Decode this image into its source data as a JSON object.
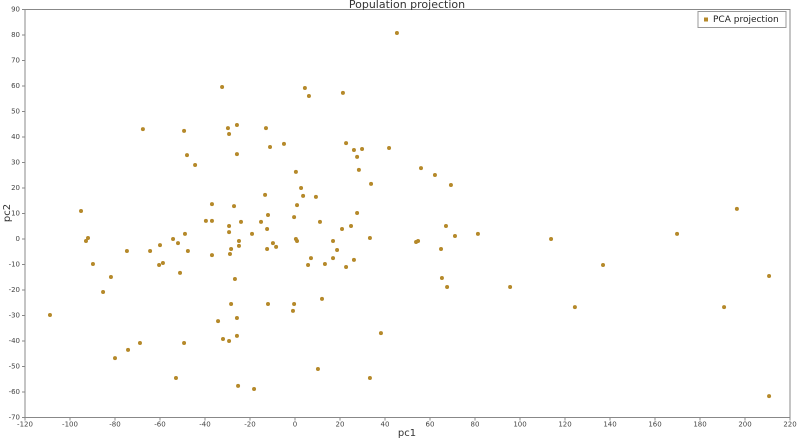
{
  "chart_data": {
    "type": "scatter",
    "title": "Population projection",
    "xlabel": "pc1",
    "ylabel": "pc2",
    "series": [
      {
        "name": "PCA projection",
        "color": "#b5892a",
        "x": [
          -108.9,
          -95.1,
          -92.9,
          -92.0,
          -89.8,
          -85.3,
          -81.8,
          -80.0,
          -74.7,
          -74.2,
          -68.9,
          -67.6,
          -64.4,
          -60.0,
          -60.4,
          -58.7,
          -54.2,
          -52.9,
          -52.0,
          -51.1,
          -49.3,
          -48.9,
          -49.3,
          -48.0,
          -47.6,
          -44.4,
          -39.6,
          -36.9,
          -36.9,
          -36.9,
          -34.2,
          -32.4,
          -32.0,
          -29.8,
          -29.3,
          -29.3,
          -29.3,
          -28.4,
          -28.9,
          -28.4,
          -29.3,
          -27.1,
          -26.7,
          -25.8,
          -25.8,
          -25.8,
          -25.8,
          -25.3,
          -24.9,
          -24.9,
          -24.0,
          -19.1,
          -18.2,
          -15.1,
          -13.3,
          -12.9,
          -12.4,
          -12.0,
          -12.4,
          -12.0,
          -11.1,
          -9.8,
          -8.4,
          -4.9,
          -0.9,
          -0.4,
          -0.4,
          0.4,
          0.4,
          0.9,
          0.9,
          2.7,
          3.6,
          4.4,
          5.8,
          6.2,
          7.1,
          9.3,
          10.2,
          11.1,
          12.0,
          13.3,
          16.9,
          16.9,
          18.7,
          20.9,
          21.3,
          22.7,
          22.7,
          24.9,
          26.2,
          26.2,
          27.6,
          27.6,
          28.4,
          29.8,
          33.3,
          33.8,
          33.3,
          38.2,
          41.8,
          45.3,
          53.8,
          54.7,
          56.0,
          62.2,
          64.9,
          65.3,
          67.1,
          67.6,
          69.3,
          71.1,
          81.3,
          95.6,
          113.8,
          124.4,
          136.9,
          169.8,
          190.7,
          196.4,
          210.7,
          210.7
        ],
        "values": [
          -29.8,
          11.0,
          -0.8,
          0.4,
          -9.8,
          -20.8,
          -14.9,
          -46.7,
          -4.7,
          -43.5,
          -40.8,
          43.1,
          -4.7,
          -2.4,
          -10.2,
          -9.4,
          0,
          -54.5,
          -1.6,
          -13.3,
          42.4,
          2.0,
          -40.8,
          32.9,
          -4.7,
          29.0,
          7.1,
          13.7,
          7.1,
          -6.3,
          -32.2,
          59.6,
          -39.2,
          43.5,
          41.2,
          5.1,
          2.7,
          -3.9,
          -5.9,
          -25.5,
          -40.0,
          12.9,
          -15.7,
          44.7,
          33.3,
          -31.0,
          -38.0,
          -57.6,
          -0.8,
          -2.7,
          6.7,
          2.0,
          -58.8,
          6.7,
          17.3,
          43.5,
          3.9,
          9.4,
          -3.9,
          -25.5,
          36.1,
          -1.6,
          -3.1,
          37.3,
          -28.2,
          -25.5,
          8.6,
          26.3,
          0,
          13.3,
          -0.8,
          20.0,
          16.9,
          59.2,
          -10.2,
          56.1,
          -7.5,
          16.5,
          -51.0,
          6.7,
          -23.5,
          -9.8,
          -0.8,
          -7.5,
          -4.3,
          3.9,
          57.3,
          37.6,
          -11.0,
          5.1,
          -8.2,
          34.9,
          32.2,
          10.2,
          27.1,
          35.3,
          0.4,
          21.6,
          -54.5,
          -36.9,
          35.7,
          80.8,
          -1.2,
          -0.8,
          27.8,
          25.1,
          -3.9,
          -15.3,
          5.1,
          -18.8,
          21.2,
          1.2,
          2.0,
          -18.8,
          0,
          -26.7,
          -10.2,
          2.0,
          -26.7,
          11.8,
          -14.5,
          -61.6
        ]
      }
    ],
    "xlim": [
      -120,
      220
    ],
    "xticks": [
      -120,
      -100,
      -80,
      -60,
      -40,
      -20,
      0,
      20,
      40,
      60,
      80,
      100,
      120,
      140,
      160,
      180,
      200,
      220
    ],
    "ylim": [
      -70,
      90
    ],
    "yticks": [
      -70,
      -60,
      -50,
      -40,
      -30,
      -20,
      -10,
      0,
      10,
      20,
      30,
      40,
      50,
      60,
      70,
      80,
      90
    ],
    "legend": "top-right"
  }
}
